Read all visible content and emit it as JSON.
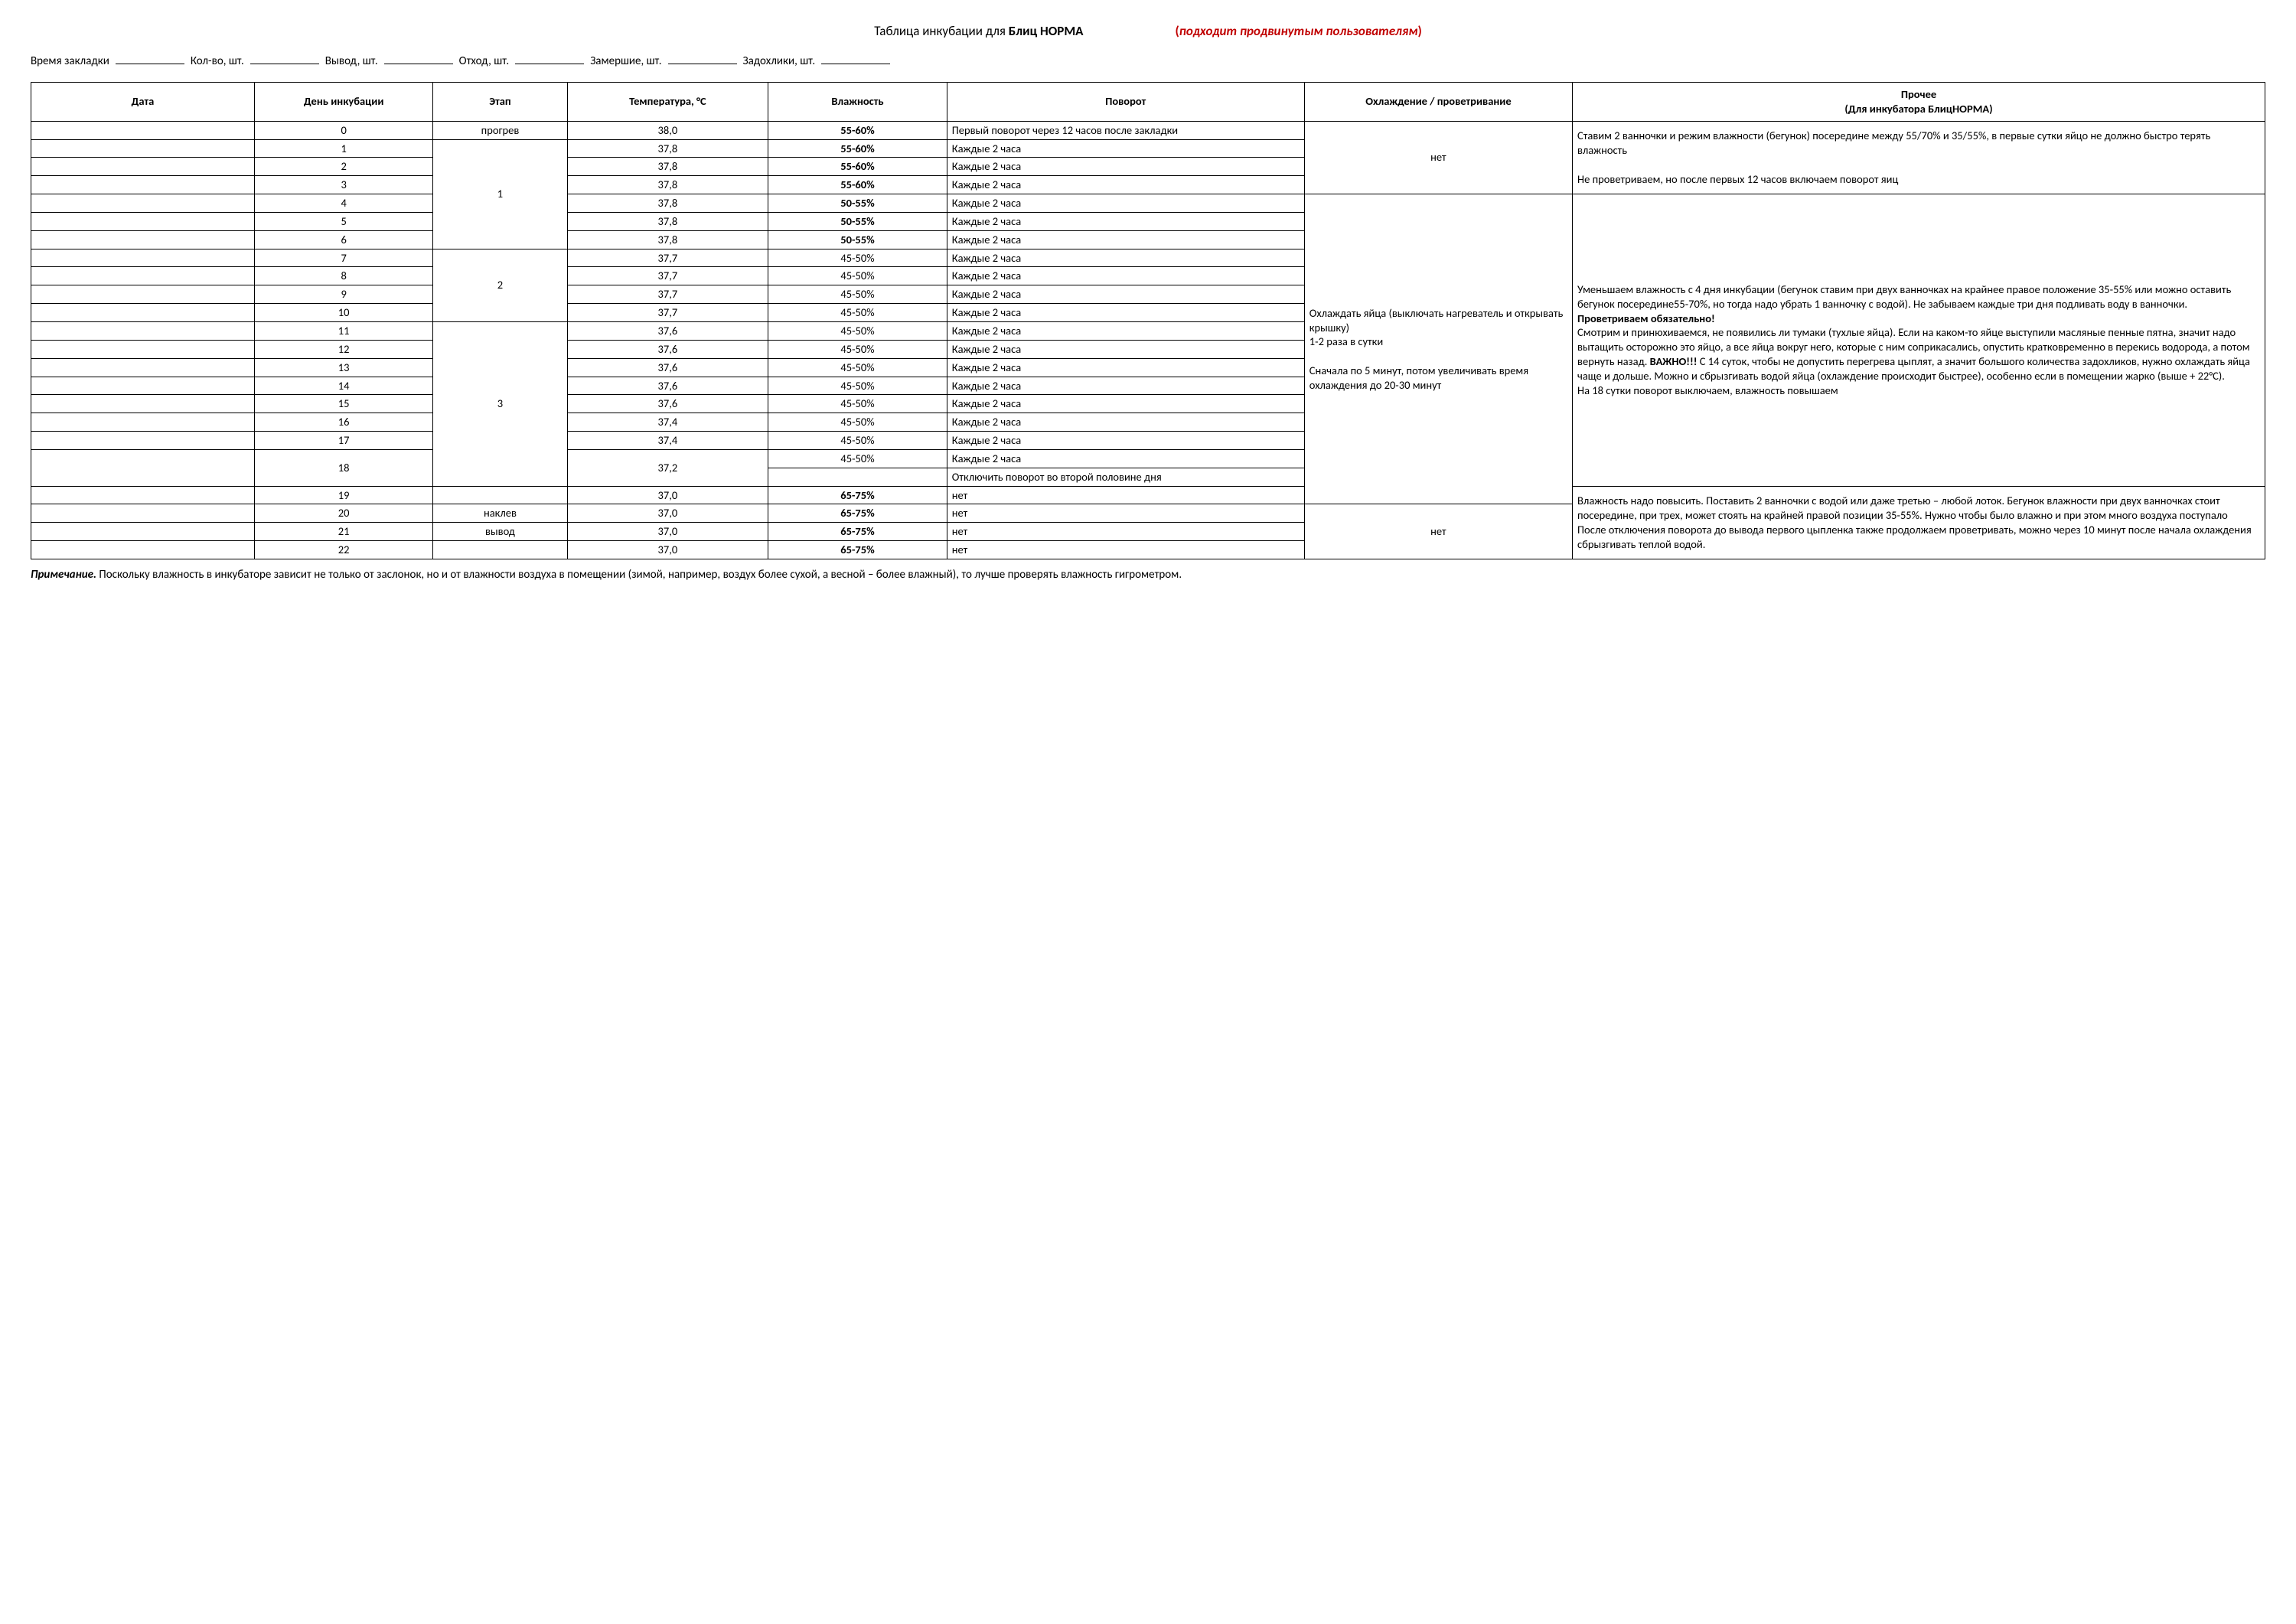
{
  "title": {
    "prefix": "Таблица инкубации для ",
    "bold": "Блиц НОРМА",
    "right": "(подходит продвинутым пользователям)"
  },
  "form": {
    "f1": "Время закладки",
    "f2": "Кол-во, шт.",
    "f3": "Вывод, шт.",
    "f4": "Отход, шт.",
    "f5": "Замершие, шт.",
    "f6": "Задохлики, шт."
  },
  "headers": {
    "date": "Дата",
    "day": "День инкубации",
    "stage": "Этап",
    "temp": "Температура, °C",
    "hum": "Влажность",
    "turn": "Поворот",
    "cool": "Охлаждение / проветривание",
    "other": "Прочее",
    "other2": "(Для инкубатора БлицНОРМА)"
  },
  "stages": {
    "warm": "прогрев",
    "s1": "1",
    "s2": "2",
    "s3": "3",
    "peck": "наклев",
    "hatch": "вывод"
  },
  "cool": {
    "no": "нет",
    "long": "Охлаждать яйца (выключать нагреватель и открывать крышку)\n1-2 раза в сутки\n\nСначала по 5 минут, потом увеличивать время охлаждения до 20-30 минут"
  },
  "other": {
    "b1": "Ставим 2 ванночки и режим влажности (бегунок) посередине между 55/70% и 35/55%, в первые сутки яйцо не должно быстро терять влажность\n\nНе проветриваем, но после первых 12 часов включаем поворот яиц",
    "b2a": "Уменьшаем влажность с 4 дня инкубации (бегунок ставим при двух ванночках на крайнее правое положение 35-55% или можно оставить бегунок посередине55-70%, но тогда надо убрать 1 ванночку с водой). Не забываем каждые три дня подливать воду в ванночки.",
    "b2b": "Проветриваем обязательно!",
    "b2c": "Смотрим и принюхиваемся, не появились ли тумаки (тухлые яйца). Если на каком-то яйце выступили масляные пенные пятна, значит надо вытащить осторожно это яйцо, а все яйца вокруг него, которые с ним соприкасались, опустить кратковременно в перекись водорода, а потом вернуть назад. ",
    "b2d": "ВАЖНО!!!",
    "b2e": " С 14 суток, чтобы не допустить перегрева цыплят, а значит большого количества задохликов, нужно охлаждать яйца чаще и дольше. Можно и сбрызгивать водой яйца (охлаждение происходит быстрее), особенно если в помещении жарко (выше + 22°C).\nНа 18 сутки поворот выключаем, влажность повышаем",
    "b3": "Влажность надо повысить. Поставить 2 ванночки с водой или даже третью – любой лоток.  Бегунок влажности при двух ванночках стоит посередине, при трех, может стоять на крайней правой позиции 35-55%. Нужно чтобы было влажно и при этом много воздуха поступало\nПосле отключения поворота до вывода первого цыпленка также продолжаем проветривать, можно через 10 минут после начала охлаждения сбрызгивать теплой водой."
  },
  "turn": {
    "first": "Первый поворот через 12 часов после закладки",
    "every2h": "Каждые 2 часа",
    "off": "Отключить поворот во второй половине дня",
    "no": "нет"
  },
  "rows": [
    {
      "day": "0",
      "temp": "38,0",
      "hum": "55-60%",
      "humBold": true
    },
    {
      "day": "1",
      "temp": "37,8",
      "hum": "55-60%",
      "humBold": true
    },
    {
      "day": "2",
      "temp": "37,8",
      "hum": "55-60%",
      "humBold": true
    },
    {
      "day": "3",
      "temp": "37,8",
      "hum": "55-60%",
      "humBold": true
    },
    {
      "day": "4",
      "temp": "37,8",
      "hum": "50-55%",
      "humBold": true
    },
    {
      "day": "5",
      "temp": "37,8",
      "hum": "50-55%",
      "humBold": true
    },
    {
      "day": "6",
      "temp": "37,8",
      "hum": "50-55%",
      "humBold": true
    },
    {
      "day": "7",
      "temp": "37,7",
      "hum": "45-50%",
      "humBold": false
    },
    {
      "day": "8",
      "temp": "37,7",
      "hum": "45-50%",
      "humBold": false
    },
    {
      "day": "9",
      "temp": "37,7",
      "hum": "45-50%",
      "humBold": false
    },
    {
      "day": "10",
      "temp": "37,7",
      "hum": "45-50%",
      "humBold": false
    },
    {
      "day": "11",
      "temp": "37,6",
      "hum": "45-50%",
      "humBold": false
    },
    {
      "day": "12",
      "temp": "37,6",
      "hum": "45-50%",
      "humBold": false
    },
    {
      "day": "13",
      "temp": "37,6",
      "hum": "45-50%",
      "humBold": false
    },
    {
      "day": "14",
      "temp": "37,6",
      "hum": "45-50%",
      "humBold": false
    },
    {
      "day": "15",
      "temp": "37,6",
      "hum": "45-50%",
      "humBold": false
    },
    {
      "day": "16",
      "temp": "37,4",
      "hum": "45-50%",
      "humBold": false
    },
    {
      "day": "17",
      "temp": "37,4",
      "hum": "45-50%",
      "humBold": false
    },
    {
      "day": "18",
      "temp": "37,2",
      "hum": "45-50%",
      "humBold": false
    },
    {
      "day": "19",
      "temp": "37,0",
      "hum": "65-75%",
      "humBold": true
    },
    {
      "day": "20",
      "temp": "37,0",
      "hum": "65-75%",
      "humBold": true
    },
    {
      "day": "21",
      "temp": "37,0",
      "hum": "65-75%",
      "humBold": true
    },
    {
      "day": "22",
      "temp": "37,0",
      "hum": "65-75%",
      "humBold": true
    }
  ],
  "note": {
    "label": "Примечание.",
    "text": " Поскольку влажность в инкубаторе зависит не только от заслонок, но и от влажности воздуха в помещении (зимой, например, воздух более сухой, а весной – более влажный), то лучше проверять влажность гигрометром."
  },
  "colors": {
    "red": "#c00000",
    "border": "#000000",
    "text": "#000000",
    "bg": "#ffffff"
  }
}
